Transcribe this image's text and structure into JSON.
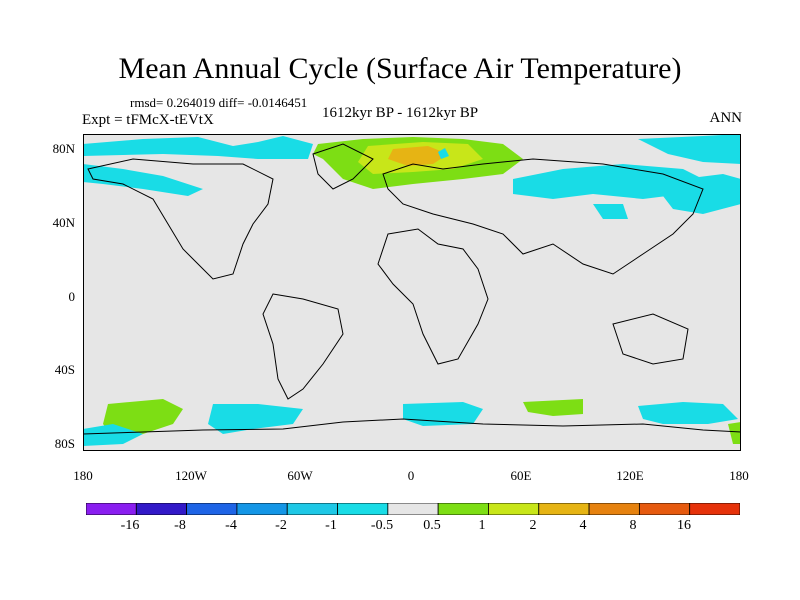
{
  "title": "Mean Annual Cycle (Surface Air Temperature)",
  "stats": "rmsd= 0.264019 diff= -0.0146451",
  "experiment": "Expt = tFMcX-tEVtX",
  "period": "1612kyr BP - 1612kyr BP",
  "season": "ANN",
  "lat_labels": [
    "80N",
    "40N",
    "0",
    "40S",
    "80S"
  ],
  "lon_labels": [
    "180",
    "120W",
    "60W",
    "0",
    "60E",
    "120E",
    "180"
  ],
  "colorbar": {
    "labels": [
      "-16",
      "-8",
      "-4",
      "-2",
      "-1",
      "-0.5",
      "0.5",
      "1",
      "2",
      "4",
      "8",
      "16"
    ],
    "colors": [
      "#8a1ef0",
      "#3219c8",
      "#1e64e6",
      "#1496e6",
      "#1ec8e6",
      "#19dce6",
      "#e6e6e6",
      "#7dde14",
      "#c8e619",
      "#e6b414",
      "#e6820f",
      "#e65a0f",
      "#e6320a"
    ]
  },
  "map": {
    "background": "#e6e6e6",
    "frame_color": "#000000"
  }
}
